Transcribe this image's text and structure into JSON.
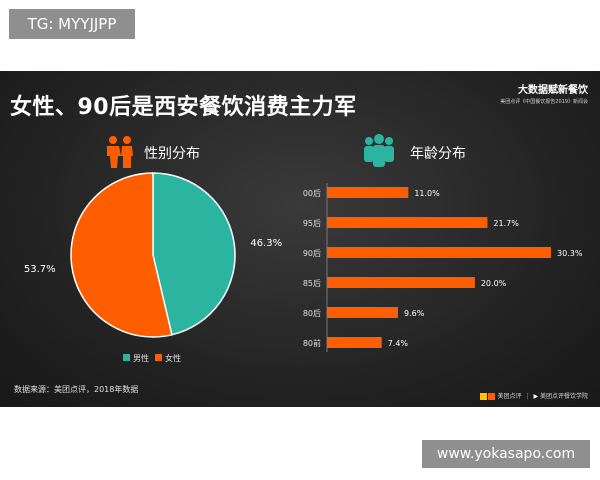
{
  "watermark_top": "TG: MYYJJPP",
  "watermark_bottom": "www.yokasapo.com",
  "slide": {
    "title": "女性、90后是西安餐饮消费主力军",
    "brand_title": "大数据赋新餐饮",
    "brand_sub": "美团点评《中国餐饮报告2019》新闻会",
    "source": "数据来源：美团点评，2018年数据",
    "logo_meituan": "美团点评",
    "logo_academy": "美团点评餐饮学院"
  },
  "colors": {
    "male": "#2bb5a0",
    "female": "#ff5e00",
    "bar": "#ff5e00"
  },
  "chart_data": [
    {
      "type": "pie",
      "title": "性别分布",
      "icon": "male-female-couple-icon",
      "categories": [
        "男性",
        "女性"
      ],
      "values": [
        46.3,
        53.7
      ],
      "labels": [
        "46.3%",
        "53.7%"
      ],
      "legend": [
        "男性",
        "女性"
      ],
      "legend_placement": "bottom"
    },
    {
      "type": "bar",
      "orientation": "horizontal",
      "title": "年龄分布",
      "icon": "group-people-icon",
      "categories": [
        "00后",
        "95后",
        "90后",
        "85后",
        "80后",
        "80前"
      ],
      "values": [
        11.0,
        21.7,
        30.3,
        20.0,
        9.6,
        7.4
      ],
      "labels": [
        "11.0%",
        "21.7%",
        "30.3%",
        "20.0%",
        "9.6%",
        "7.4%"
      ],
      "xlim": [
        0,
        30.3
      ]
    }
  ]
}
